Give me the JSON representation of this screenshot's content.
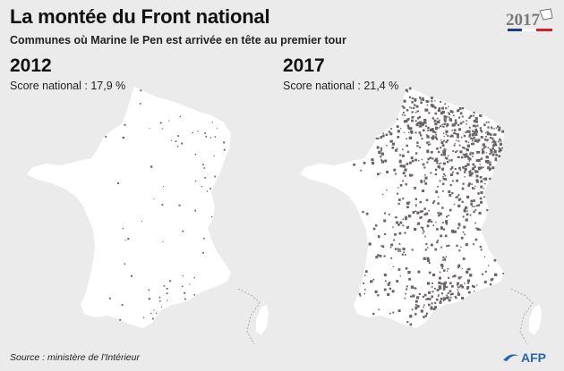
{
  "header": {
    "title": "La montée du Front national",
    "subtitle": "Communes où Marine le Pen est arrivée en tête au premier tour"
  },
  "logo": {
    "year": "2017"
  },
  "panels": [
    {
      "year": "2012",
      "score": "Score national : 17,9 %",
      "share": 17.9
    },
    {
      "year": "2017",
      "score": "Score national : 21,4 %",
      "share": 21.4
    }
  ],
  "colors": {
    "land": "#ffffff",
    "communes": "#6b6466",
    "background": "#ebebeb"
  },
  "footer": {
    "source": "Source : ministère de l'Intérieur",
    "credit": "AFP"
  }
}
